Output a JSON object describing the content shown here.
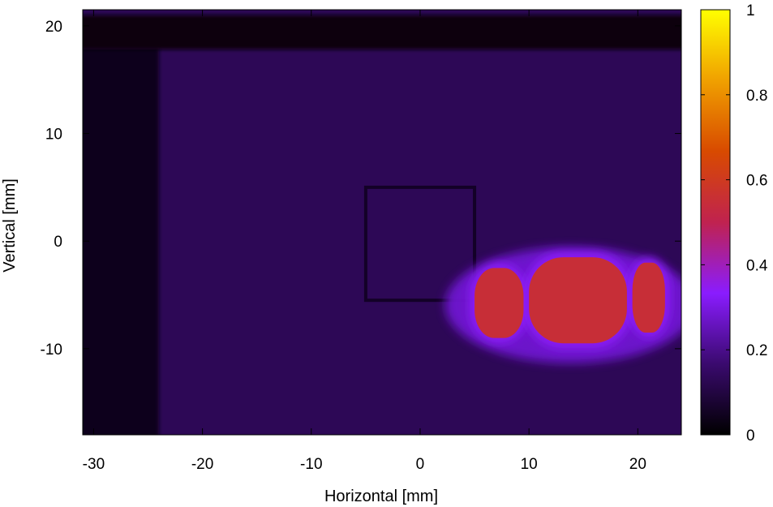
{
  "chart_data": {
    "type": "heatmap",
    "title": "",
    "xlabel": "Horizontal [mm]",
    "ylabel": "Vertical [mm]",
    "xlim": [
      -31,
      24
    ],
    "ylim": [
      -18,
      21.5
    ],
    "x_ticks": [
      "-30",
      "-20",
      "-10",
      "0",
      "10",
      "20"
    ],
    "x_tick_values": [
      -30,
      -20,
      -10,
      0,
      10,
      20
    ],
    "y_ticks": [
      "20",
      "10",
      "0",
      "-10"
    ],
    "y_tick_values": [
      20,
      10,
      0,
      -10
    ],
    "colorbar": {
      "range": [
        0,
        1
      ],
      "ticks": [
        "1",
        "0.8",
        "0.6",
        "0.4",
        "0.2",
        "0"
      ],
      "tick_values": [
        1,
        0.8,
        0.6,
        0.4,
        0.2,
        0
      ],
      "colormap": [
        "#000000",
        "#3a0a6e",
        "#8a1cff",
        "#c0224f",
        "#d84a00",
        "#f0a000",
        "#ffff00"
      ]
    },
    "background_intensity": 0.13,
    "dark_edge_region": {
      "x": [
        -31,
        -24
      ],
      "y": [
        -18,
        18
      ],
      "intensity": 0.04
    },
    "dark_top_band": {
      "x": [
        -31,
        24
      ],
      "y": [
        17.8,
        21
      ],
      "intensity": 0.02
    },
    "grid_lines_x": [
      -20,
      -10,
      0,
      9.5,
      19
    ],
    "grid_lines_y": [
      20.6,
      10,
      0,
      -10
    ],
    "central_square": {
      "x": [
        -5,
        5
      ],
      "y": [
        -5.5,
        5
      ]
    },
    "hot_spot": {
      "x": [
        0,
        23
      ],
      "y": [
        -10,
        -1
      ],
      "peak_intensity": 0.55,
      "lobes": [
        {
          "x": [
            5,
            9.5
          ],
          "y": [
            -9,
            -2.5
          ]
        },
        {
          "x": [
            10,
            19
          ],
          "y": [
            -9.5,
            -1.5
          ]
        },
        {
          "x": [
            19.5,
            22.5
          ],
          "y": [
            -8.5,
            -2
          ]
        }
      ]
    }
  }
}
